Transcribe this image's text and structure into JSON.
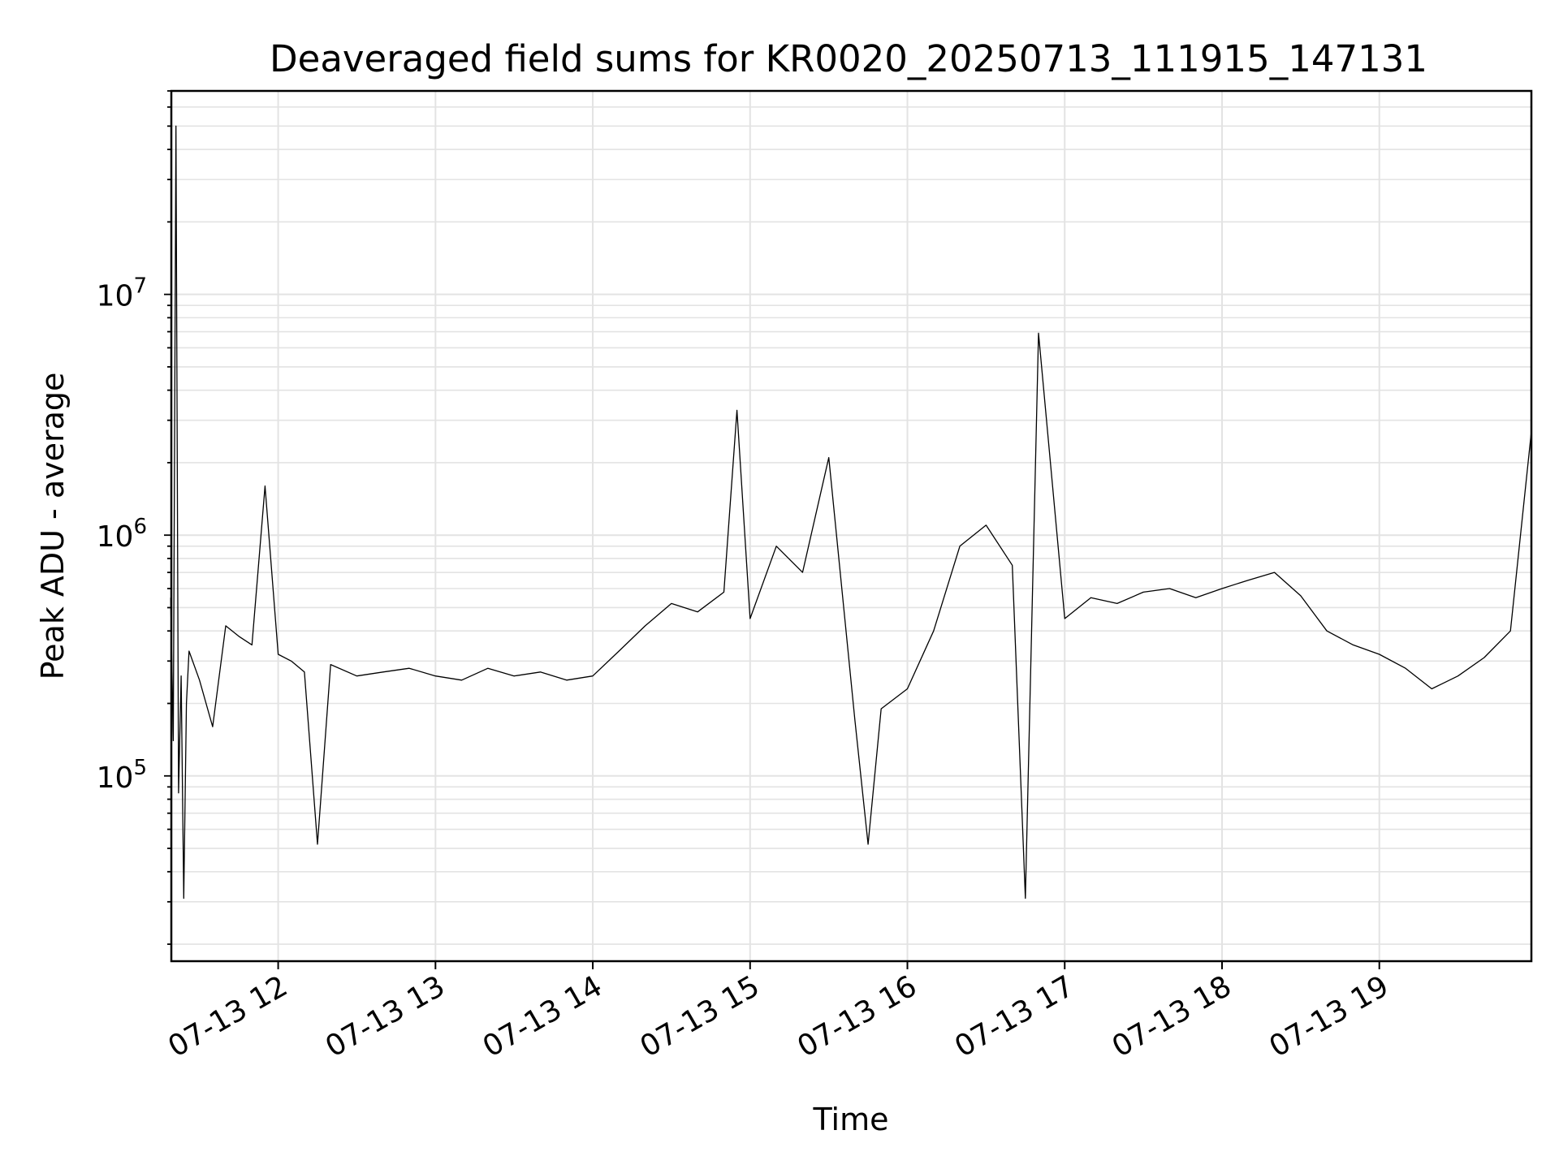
{
  "chart_data": {
    "type": "line",
    "title": "Deaveraged field sums for KR0020_20250713_111915_147131",
    "xlabel": "Time",
    "ylabel": "Peak ADU - average",
    "y_scale": "log",
    "grid": true,
    "legend": "none",
    "xlim": [
      "07-13 11:19:15",
      "07-13 19:58:00"
    ],
    "ylim": [
      17000,
      70000000
    ],
    "x_ticks": [
      "07-13 12",
      "07-13 13",
      "07-13 14",
      "07-13 15",
      "07-13 16",
      "07-13 17",
      "07-13 18",
      "07-13 19"
    ],
    "y_ticks": [
      {
        "value": 100000,
        "base": "10",
        "exp": "5"
      },
      {
        "value": 1000000,
        "base": "10",
        "exp": "6"
      },
      {
        "value": 10000000,
        "base": "10",
        "exp": "7"
      }
    ],
    "series": [
      {
        "color": "#000000",
        "x": [
          "07-13 11:19",
          "07-13 11:20",
          "07-13 11:21",
          "07-13 11:22",
          "07-13 11:23",
          "07-13 11:24",
          "07-13 11:25",
          "07-13 11:26",
          "07-13 11:30",
          "07-13 11:35",
          "07-13 11:40",
          "07-13 11:45",
          "07-13 11:50",
          "07-13 11:55",
          "07-13 12:00",
          "07-13 12:05",
          "07-13 12:10",
          "07-13 12:15",
          "07-13 12:20",
          "07-13 12:30",
          "07-13 12:40",
          "07-13 12:50",
          "07-13 13:00",
          "07-13 13:10",
          "07-13 13:20",
          "07-13 13:30",
          "07-13 13:40",
          "07-13 13:50",
          "07-13 14:00",
          "07-13 14:10",
          "07-13 14:20",
          "07-13 14:30",
          "07-13 14:40",
          "07-13 14:50",
          "07-13 14:55",
          "07-13 15:00",
          "07-13 15:10",
          "07-13 15:20",
          "07-13 15:30",
          "07-13 15:40",
          "07-13 15:45",
          "07-13 15:50",
          "07-13 16:00",
          "07-13 16:10",
          "07-13 16:20",
          "07-13 16:30",
          "07-13 16:40",
          "07-13 16:45",
          "07-13 16:50",
          "07-13 17:00",
          "07-13 17:10",
          "07-13 17:20",
          "07-13 17:30",
          "07-13 17:40",
          "07-13 17:50",
          "07-13 18:00",
          "07-13 18:10",
          "07-13 18:20",
          "07-13 18:30",
          "07-13 18:40",
          "07-13 18:50",
          "07-13 19:00",
          "07-13 19:10",
          "07-13 19:20",
          "07-13 19:30",
          "07-13 19:40",
          "07-13 19:50",
          "07-13 19:58"
        ],
        "y": [
          550000,
          140000,
          50000000,
          85000,
          260000,
          31000,
          200000,
          330000,
          250000,
          160000,
          420000,
          380000,
          350000,
          1600000,
          320000,
          300000,
          270000,
          52000,
          290000,
          260000,
          270000,
          280000,
          260000,
          250000,
          280000,
          260000,
          270000,
          250000,
          260000,
          330000,
          420000,
          520000,
          480000,
          580000,
          3300000,
          450000,
          900000,
          700000,
          2100000,
          170000,
          52000,
          190000,
          230000,
          400000,
          900000,
          1100000,
          750000,
          31000,
          6900000,
          450000,
          550000,
          520000,
          580000,
          600000,
          550000,
          600000,
          650000,
          700000,
          560000,
          400000,
          350000,
          320000,
          280000,
          230000,
          260000,
          310000,
          400000,
          2700000
        ]
      }
    ]
  }
}
